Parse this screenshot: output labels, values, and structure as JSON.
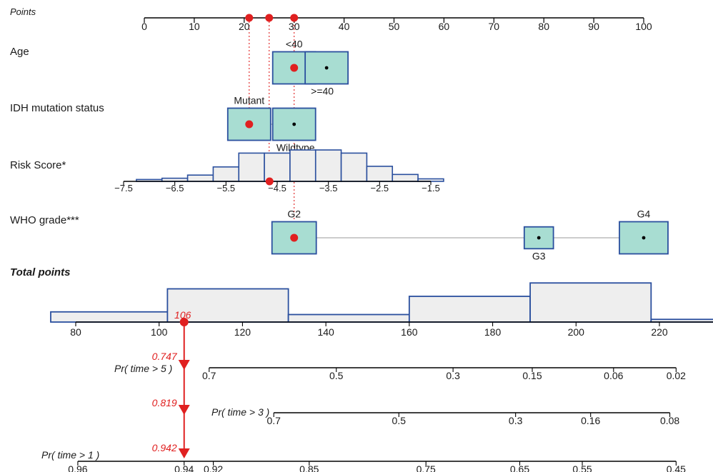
{
  "colors": {
    "box_fill": "#a8ddd2",
    "box_stroke": "#2a4f9e",
    "hist_fill": "#eeeeee",
    "axis": "#000000",
    "highlight": "#e02020",
    "connector": "#bbbbbb",
    "text": "#1a1a1a"
  },
  "chart_data": {
    "type": "nomogram",
    "points": {
      "label": "Points",
      "ticks": [
        "0",
        "10",
        "20",
        "30",
        "40",
        "50",
        "60",
        "70",
        "80",
        "90",
        "100"
      ],
      "range": [
        0,
        100
      ],
      "selected": [
        21,
        25,
        30
      ]
    },
    "variables": [
      {
        "label": "Age",
        "kind": "box",
        "levels": [
          {
            "name": "<40",
            "points": 30,
            "selected": true,
            "label_side": "above"
          },
          {
            "name": ">=40",
            "points": 36.5,
            "selected": false,
            "label_side": "below"
          }
        ]
      },
      {
        "label": "IDH mutation status",
        "kind": "box",
        "levels": [
          {
            "name": "Mutant",
            "points": 21,
            "selected": true,
            "label_side": "above"
          },
          {
            "name": "Wildtype",
            "points": 30,
            "selected": false,
            "label_side": "below"
          }
        ]
      },
      {
        "label": "Risk Score*",
        "kind": "histogram",
        "axis_range": [
          -7.5,
          -1.5
        ],
        "tick_labels": [
          "−7.5",
          "−6.5",
          "−5.5",
          "−4.5",
          "−3.5",
          "−2.5",
          "−1.5"
        ],
        "tick_values": [
          -7.5,
          -6.5,
          -5.5,
          -4.5,
          -3.5,
          -2.5,
          -1.5
        ],
        "bin_edges": [
          -7.25,
          -6.75,
          -6.25,
          -5.75,
          -5.25,
          -4.75,
          -4.25,
          -3.75,
          -3.25,
          -2.75,
          -2.25,
          -1.75
        ],
        "bin_heights": [
          0.06,
          0.1,
          0.2,
          0.46,
          0.9,
          0.9,
          1.0,
          1.0,
          0.9,
          0.48,
          0.22,
          0.08
        ],
        "selected_value": -4.65
      },
      {
        "label": "WHO grade***",
        "kind": "box",
        "levels": [
          {
            "name": "G2",
            "points": 30,
            "selected": true,
            "label_side": "above",
            "size": 1.0
          },
          {
            "name": "G3",
            "points": 79,
            "selected": false,
            "label_side": "below",
            "size": 0.68
          },
          {
            "name": "G4",
            "points": 100,
            "selected": false,
            "label_side": "above",
            "size": 1.0
          }
        ]
      }
    ],
    "total_points": {
      "label": "Total points",
      "ticks": [
        "80",
        "100",
        "120",
        "140",
        "160",
        "180",
        "200",
        "220"
      ],
      "tick_values": [
        80,
        100,
        120,
        140,
        160,
        180,
        200,
        220
      ],
      "selected_value": 106,
      "selected_label": "106",
      "hist_bins": [
        {
          "from": 74,
          "to": 102,
          "height": 0.19
        },
        {
          "from": 102,
          "to": 131,
          "height": 0.62
        },
        {
          "from": 131,
          "to": 160,
          "height": 0.14
        },
        {
          "from": 160,
          "to": 189,
          "height": 0.48
        },
        {
          "from": 189,
          "to": 218,
          "height": 0.73
        },
        {
          "from": 218,
          "to": 244,
          "height": 0.05
        }
      ]
    },
    "probabilities": [
      {
        "label": "Pr( time > 5 )",
        "value_label": "0.747",
        "ticks": [
          "0.7",
          "0.5",
          "0.3",
          "0.15",
          "0.06",
          "0.02"
        ],
        "tick_totals": [
          112,
          142.5,
          170.5,
          189.5,
          209,
          224
        ]
      },
      {
        "label": "Pr( time > 3 )",
        "value_label": "0.819",
        "ticks": [
          "0.7",
          "0.5",
          "0.3",
          "0.16",
          "0.08"
        ],
        "tick_totals": [
          127.5,
          157.5,
          185.5,
          203.5,
          222.5
        ]
      },
      {
        "label": "Pr( time > 1 )",
        "value_label": "0.942",
        "ticks": [
          "0.96",
          "0.94",
          "0.92",
          "0.85",
          "0.75",
          "0.65",
          "0.55",
          "0.45"
        ],
        "tick_totals": [
          80.5,
          106,
          113,
          136,
          164,
          186.5,
          201.5,
          224
        ]
      }
    ]
  }
}
